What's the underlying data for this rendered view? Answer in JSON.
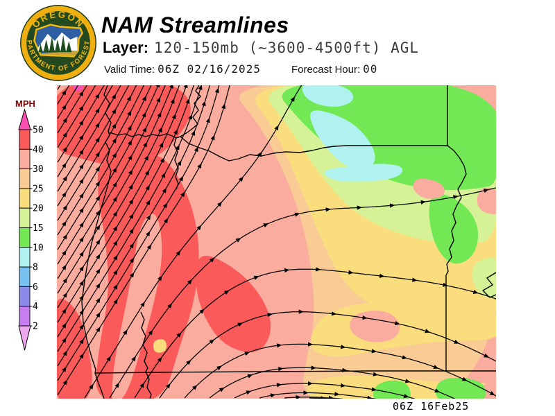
{
  "header": {
    "title": "NAM Streamlines",
    "layer_label": "Layer:",
    "layer_value": "120-150mb (~3600-4500ft) AGL",
    "valid_time_label": "Valid Time:",
    "valid_time_value": "06Z 02/16/2025",
    "forecast_hour_label": "Forecast Hour:",
    "forecast_hour_value": "00"
  },
  "logo": {
    "top_text": "OREGON",
    "bottom_text": "DEPARTMENT OF FORESTRY",
    "ring_color": "#EFAF10",
    "disc_color": "#24491F",
    "text_color": "#F2B70B"
  },
  "legend": {
    "title": "MPH",
    "title_color": "#8B0000",
    "unit": "MPH",
    "labels": [
      "50",
      "40",
      "30",
      "25",
      "20",
      "15",
      "10",
      "8",
      "6",
      "4",
      "2"
    ],
    "segment_colors": [
      "#FA5A5A",
      "#FAAC9E",
      "#FACC95",
      "#FADD7D",
      "#D6F296",
      "#72E854",
      "#AFF2EF",
      "#77C1F0",
      "#8B8BEA",
      "#C77DF0"
    ],
    "above_max_color": "#FB4FB4",
    "below_min_color": "#ECA8EC"
  },
  "map": {
    "timestamp": "06Z 16Feb25",
    "description": "NAM model wind streamlines over Oregon, 120-150mb (~3600-4500ft) AGL"
  }
}
